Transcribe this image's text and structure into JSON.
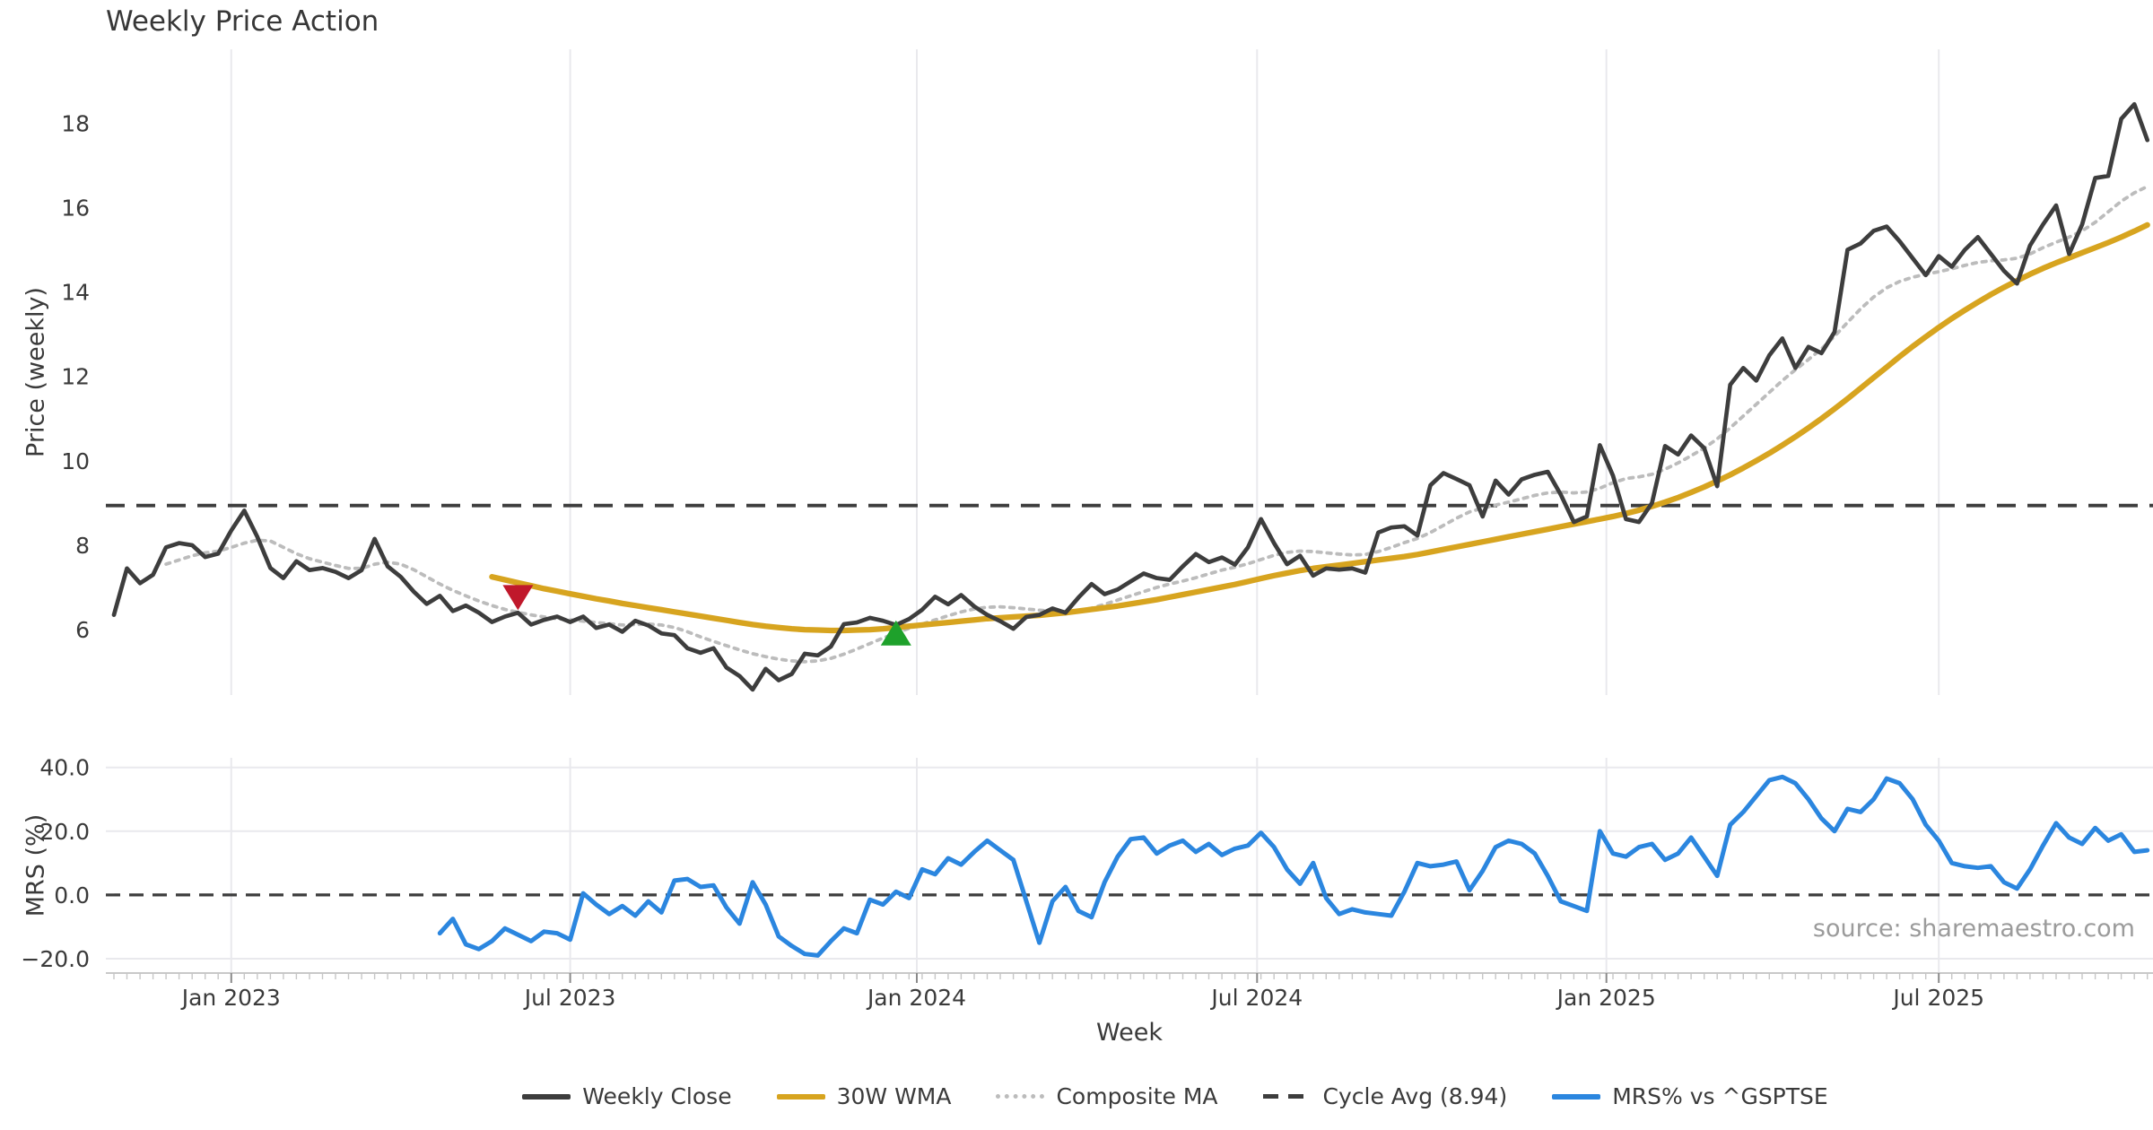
{
  "title": "Weekly Price Action",
  "source": "source: sharemaestro.com",
  "colors": {
    "close": "#3d3d3d",
    "wma": "#d7a41f",
    "composite": "#bcbcbc",
    "cycle_avg": "#3d3d3d",
    "mrs": "#2b86df",
    "sell_marker": "#c0182b",
    "buy_marker": "#1ea12b",
    "grid": "#e9e9ed",
    "spine": "#c9c9c9",
    "tick": "#9a9a9a",
    "text": "#3a3a3a",
    "muted_text": "#9b9b9b"
  },
  "legend": {
    "items": [
      {
        "label": "Weekly Close",
        "style": "solid",
        "color": "#3d3d3d"
      },
      {
        "label": "30W WMA",
        "style": "solid",
        "color": "#d7a41f"
      },
      {
        "label": "Composite MA",
        "style": "dotted",
        "color": "#bcbcbc"
      },
      {
        "label": "Cycle Avg (8.94)",
        "style": "dashed",
        "color": "#3d3d3d"
      },
      {
        "label": "MRS% vs ^GSPTSE",
        "style": "solid",
        "color": "#2b86df"
      }
    ]
  },
  "chart_data": {
    "type": "line",
    "title": "Weekly Price Action",
    "xlabel": "Week",
    "x_tick_labels": [
      "Jan 2023",
      "Jul 2023",
      "Jan 2024",
      "Jul 2024",
      "Jan 2025",
      "Jul 2025"
    ],
    "x_tick_weeks": [
      9,
      35,
      61.6,
      87.7,
      114.5,
      140
    ],
    "weeks_total": 157,
    "panels": [
      {
        "name": "price",
        "ylabel": "Price (weekly)",
        "ylim": [
          4.45,
          19.75
        ],
        "yticks": [
          6,
          8,
          10,
          12,
          14,
          16,
          18
        ],
        "ytick_labels": [
          "6",
          "8",
          "10",
          "12",
          "14",
          "16",
          "18"
        ],
        "grid": "vertical-only",
        "cycle_avg_value": 8.94,
        "series": [
          {
            "name": "Weekly Close",
            "style": "solid",
            "color": "#3d3d3d",
            "start_week": 0,
            "values": [
              6.35,
              7.45,
              7.1,
              7.3,
              7.95,
              8.05,
              8.0,
              7.72,
              7.8,
              8.35,
              8.82,
              8.2,
              7.46,
              7.22,
              7.62,
              7.41,
              7.46,
              7.37,
              7.22,
              7.41,
              8.15,
              7.5,
              7.25,
              6.9,
              6.61,
              6.8,
              6.44,
              6.57,
              6.4,
              6.18,
              6.31,
              6.4,
              6.12,
              6.23,
              6.31,
              6.18,
              6.31,
              6.04,
              6.12,
              5.95,
              6.21,
              6.1,
              5.91,
              5.87,
              5.56,
              5.45,
              5.56,
              5.1,
              4.9,
              4.58,
              5.07,
              4.8,
              4.95,
              5.43,
              5.39,
              5.6,
              6.13,
              6.17,
              6.28,
              6.21,
              6.11,
              6.25,
              6.47,
              6.78,
              6.6,
              6.82,
              6.55,
              6.35,
              6.2,
              6.02,
              6.3,
              6.35,
              6.5,
              6.4,
              6.76,
              7.08,
              6.84,
              6.95,
              7.14,
              7.33,
              7.22,
              7.18,
              7.5,
              7.79,
              7.6,
              7.71,
              7.54,
              7.95,
              8.62,
              8.05,
              7.55,
              7.75,
              7.28,
              7.45,
              7.42,
              7.45,
              7.35,
              8.3,
              8.42,
              8.45,
              8.23,
              9.42,
              9.71,
              9.57,
              9.42,
              8.68,
              9.53,
              9.2,
              9.56,
              9.67,
              9.74,
              9.2,
              8.55,
              8.68,
              10.37,
              9.65,
              8.62,
              8.55,
              9.0,
              10.35,
              10.15,
              10.6,
              10.3,
              9.4,
              11.8,
              12.2,
              11.9,
              12.5,
              12.9,
              12.2,
              12.7,
              12.55,
              13.05,
              15.0,
              15.15,
              15.45,
              15.55,
              15.2,
              14.8,
              14.4,
              14.85,
              14.6,
              15.0,
              15.3,
              14.9,
              14.5,
              14.2,
              15.1,
              15.6,
              16.05,
              14.9,
              15.6,
              16.7,
              16.75,
              18.1,
              18.45,
              17.6
            ]
          },
          {
            "name": "30W WMA",
            "style": "solid",
            "color": "#d7a41f",
            "start_week": 29,
            "values": [
              7.25,
              7.18,
              7.11,
              7.04,
              6.97,
              6.91,
              6.85,
              6.79,
              6.73,
              6.68,
              6.62,
              6.57,
              6.52,
              6.47,
              6.42,
              6.37,
              6.32,
              6.27,
              6.22,
              6.17,
              6.12,
              6.08,
              6.05,
              6.02,
              6.0,
              5.99,
              5.98,
              5.98,
              5.99,
              6.0,
              6.02,
              6.05,
              6.08,
              6.11,
              6.14,
              6.17,
              6.2,
              6.23,
              6.26,
              6.28,
              6.3,
              6.32,
              6.34,
              6.37,
              6.4,
              6.44,
              6.48,
              6.52,
              6.56,
              6.61,
              6.66,
              6.71,
              6.77,
              6.83,
              6.89,
              6.95,
              7.01,
              7.07,
              7.14,
              7.21,
              7.28,
              7.34,
              7.4,
              7.45,
              7.49,
              7.53,
              7.57,
              7.61,
              7.65,
              7.69,
              7.73,
              7.78,
              7.84,
              7.9,
              7.96,
              8.02,
              8.08,
              8.14,
              8.2,
              8.26,
              8.32,
              8.38,
              8.44,
              8.5,
              8.56,
              8.62,
              8.68,
              8.75,
              8.83,
              8.92,
              9.02,
              9.13,
              9.25,
              9.38,
              9.52,
              9.67,
              9.83,
              10.0,
              10.18,
              10.37,
              10.57,
              10.78,
              11.0,
              11.23,
              11.47,
              11.72,
              11.97,
              12.22,
              12.47,
              12.71,
              12.94,
              13.16,
              13.37,
              13.57,
              13.76,
              13.94,
              14.11,
              14.27,
              14.42,
              14.56,
              14.69,
              14.81,
              14.93,
              15.05,
              15.17,
              15.3,
              15.44,
              15.59
            ]
          },
          {
            "name": "Composite MA",
            "style": "dotted",
            "color": "#bcbcbc",
            "start_week": 4,
            "values": [
              7.55,
              7.65,
              7.75,
              7.82,
              7.86,
              7.95,
              8.05,
              8.12,
              8.1,
              7.95,
              7.8,
              7.68,
              7.6,
              7.52,
              7.45,
              7.45,
              7.55,
              7.6,
              7.55,
              7.42,
              7.25,
              7.08,
              6.93,
              6.8,
              6.68,
              6.57,
              6.48,
              6.41,
              6.35,
              6.3,
              6.26,
              6.23,
              6.2,
              6.17,
              6.14,
              6.11,
              6.12,
              6.13,
              6.11,
              6.05,
              5.95,
              5.83,
              5.72,
              5.62,
              5.52,
              5.43,
              5.36,
              5.3,
              5.26,
              5.24,
              5.26,
              5.32,
              5.42,
              5.54,
              5.67,
              5.8,
              5.92,
              6.03,
              6.13,
              6.23,
              6.33,
              6.42,
              6.49,
              6.53,
              6.54,
              6.52,
              6.49,
              6.46,
              6.44,
              6.43,
              6.45,
              6.51,
              6.6,
              6.7,
              6.8,
              6.9,
              7.0,
              7.08,
              7.15,
              7.23,
              7.32,
              7.41,
              7.48,
              7.56,
              7.66,
              7.76,
              7.83,
              7.86,
              7.85,
              7.82,
              7.79,
              7.77,
              7.78,
              7.85,
              7.95,
              8.06,
              8.16,
              8.3,
              8.47,
              8.64,
              8.79,
              8.88,
              8.95,
              9.02,
              9.1,
              9.18,
              9.24,
              9.26,
              9.24,
              9.26,
              9.35,
              9.48,
              9.58,
              9.62,
              9.68,
              9.8,
              9.95,
              10.12,
              10.3,
              10.52,
              10.78,
              11.06,
              11.34,
              11.62,
              11.9,
              12.16,
              12.4,
              12.65,
              12.95,
              13.28,
              13.6,
              13.88,
              14.1,
              14.25,
              14.35,
              14.42,
              14.48,
              14.55,
              14.63,
              14.7,
              14.74,
              14.76,
              14.8,
              14.9,
              15.05,
              15.18,
              15.3,
              15.45,
              15.65,
              15.9,
              16.15,
              16.35,
              16.5
            ]
          },
          {
            "name": "Cycle Avg (8.94)",
            "style": "dashed",
            "color": "#3d3d3d",
            "value": 8.94
          }
        ],
        "markers": [
          {
            "shape": "triangle-down",
            "color": "#c0182b",
            "week": 31,
            "value": 6.78
          },
          {
            "shape": "triangle-up",
            "color": "#1ea12b",
            "week": 60,
            "value": 5.9
          }
        ]
      },
      {
        "name": "mrs",
        "ylabel": "MRS (%)",
        "ylim": [
          -24.5,
          43
        ],
        "yticks": [
          40,
          20,
          0,
          -20
        ],
        "ytick_labels": [
          "40.0",
          "20.0",
          "0.0",
          "−20.0"
        ],
        "grid": "both",
        "zero_line_dashed": true,
        "series": [
          {
            "name": "MRS% vs ^GSPTSE",
            "style": "solid",
            "color": "#2b86df",
            "start_week": 25,
            "values": [
              -12,
              -7.5,
              -15.5,
              -17,
              -14.5,
              -10.5,
              -12.5,
              -14.5,
              -11.5,
              -12,
              -14,
              0.5,
              -3,
              -6,
              -3.5,
              -6.5,
              -2,
              -5.5,
              4.5,
              5,
              2.5,
              3,
              -4,
              -9,
              4,
              -3,
              -13,
              -16,
              -18.5,
              -19,
              -14.5,
              -10.5,
              -12,
              -1.5,
              -3,
              1,
              -1,
              8,
              6.5,
              11.5,
              9.5,
              13.5,
              17,
              14,
              11,
              -2,
              -15,
              -2,
              2.5,
              -5,
              -7,
              4,
              12,
              17.5,
              18,
              13,
              15.5,
              17,
              13.5,
              16,
              12.5,
              14.5,
              15.5,
              19.5,
              15,
              8,
              3.5,
              10,
              -1,
              -6,
              -4.5,
              -5.5,
              -6,
              -6.5,
              1,
              10,
              9,
              9.5,
              10.5,
              1.5,
              7.5,
              15,
              17,
              16,
              13,
              6,
              -2,
              -3.5,
              -5,
              20,
              13,
              12,
              15,
              16,
              11,
              13,
              18,
              12,
              6,
              22,
              26,
              31,
              36,
              37,
              35,
              30,
              24,
              20,
              27,
              26,
              30,
              36.5,
              35,
              30,
              22,
              17,
              10,
              9,
              8.5,
              9,
              4,
              2,
              8,
              15.5,
              22.5,
              18,
              16,
              21,
              17,
              19,
              13.5,
              14
            ]
          }
        ]
      }
    ]
  }
}
